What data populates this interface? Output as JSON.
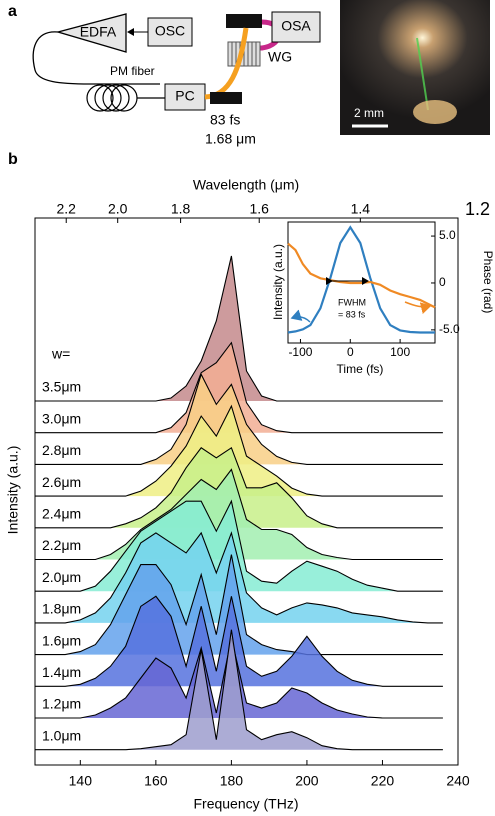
{
  "panel_a": {
    "label": "a",
    "edfa": "EDFA",
    "osc": "OSC",
    "osa": "OSA",
    "wg": "WG",
    "pm_fiber": "PM fiber",
    "pc": "PC",
    "pulse_duration": "83 fs",
    "wavelength": "1.68 μm",
    "scale_bar": "2 mm"
  },
  "panel_b_label": "b",
  "chart_data": [
    {
      "type": "waterfall",
      "x_label": "Frequency (THz)",
      "x2_label": "Wavelength (μm)",
      "y_label": "Intensity (a.u.)",
      "legend_title": "w=",
      "x": [
        128,
        132,
        136,
        140,
        144,
        148,
        152,
        156,
        160,
        164,
        168,
        172,
        176,
        180,
        184,
        188,
        192,
        196,
        200,
        204,
        208,
        212,
        216,
        220,
        224,
        228,
        232,
        236
      ],
      "xlim": [
        128,
        240
      ],
      "xticks": [
        140,
        160,
        180,
        200,
        220,
        240
      ],
      "x2ticks": [
        2.2,
        {
          "value": 2,
          "label": "2.0"
        },
        1.8,
        1.6,
        1.4,
        1.2
      ],
      "series": [
        {
          "name": "3.5μm",
          "color": "#c48a8c",
          "values": [
            0,
            0,
            0,
            0,
            0,
            0,
            0,
            0,
            0,
            0.3,
            1.5,
            4,
            8,
            14.5,
            3,
            0.5,
            0,
            0,
            0,
            0,
            0,
            0,
            0,
            0,
            0,
            0,
            0,
            0
          ]
        },
        {
          "name": "3.0μm",
          "color": "#f2ae94",
          "values": [
            0,
            0,
            0,
            0,
            0,
            0,
            0,
            0,
            0,
            0.5,
            2,
            6,
            7,
            9,
            3,
            0.8,
            0.2,
            0,
            0,
            0,
            0,
            0,
            0,
            0,
            0,
            0,
            0,
            0
          ]
        },
        {
          "name": "2.8μm",
          "color": "#f8cf86",
          "values": [
            0,
            0,
            0,
            0,
            0,
            0,
            0,
            0,
            0.5,
            1.5,
            4,
            9,
            6,
            8,
            4,
            2,
            0.8,
            0.2,
            0,
            0,
            0,
            0,
            0,
            0,
            0,
            0,
            0,
            0
          ]
        },
        {
          "name": "2.6μm",
          "color": "#eeee84",
          "values": [
            0,
            0,
            0,
            0,
            0,
            0,
            0,
            0.5,
            1.5,
            3,
            5,
            8,
            6,
            9,
            4,
            3,
            2,
            0.8,
            0.2,
            0,
            0,
            0,
            0,
            0,
            0,
            0,
            0,
            0
          ]
        },
        {
          "name": "2.4μm",
          "color": "#c8f08a",
          "values": [
            0,
            0,
            0,
            0,
            0,
            0,
            0.4,
            1,
            2,
            3.5,
            6,
            8,
            7,
            8,
            4,
            4,
            4.5,
            3,
            1.2,
            0.4,
            0,
            0,
            0,
            0,
            0,
            0,
            0,
            0
          ]
        },
        {
          "name": "2.2μm",
          "color": "#a2eeb0",
          "values": [
            0,
            0,
            0,
            0,
            0,
            0.5,
            1.5,
            3,
            4,
            5,
            6.5,
            8,
            7,
            9,
            4,
            3,
            3,
            2.5,
            1.2,
            0.5,
            0.2,
            0,
            0,
            0,
            0,
            0,
            0,
            0
          ]
        },
        {
          "name": "2.0μm",
          "color": "#86ecd4",
          "values": [
            0,
            0,
            0,
            0,
            0.5,
            2,
            4,
            6,
            7,
            8,
            9,
            9,
            6,
            9,
            2,
            1,
            0.8,
            2,
            3,
            2.5,
            2,
            1.2,
            0.6,
            0.3,
            0,
            0,
            0,
            0
          ]
        },
        {
          "name": "1.8μm",
          "color": "#74d2ee",
          "values": [
            0,
            0,
            0,
            0.3,
            1,
            2.5,
            5,
            8,
            9,
            8,
            7,
            9,
            5,
            9,
            3,
            1.5,
            0.8,
            1.5,
            2,
            1.8,
            1.5,
            1,
            0.8,
            0.6,
            0.3,
            0.1,
            0,
            0
          ]
        },
        {
          "name": "1.6μm",
          "color": "#64a2ec",
          "values": [
            0,
            0,
            0,
            0.3,
            1,
            3,
            6,
            9,
            9,
            7,
            3,
            8,
            2,
            10,
            2,
            1,
            0.5,
            0.3,
            0,
            0,
            0,
            0,
            0,
            0,
            0,
            0,
            0,
            0
          ]
        },
        {
          "name": "1.4μm",
          "color": "#5672de",
          "values": [
            0,
            0,
            0,
            0.2,
            0.8,
            2,
            4,
            8,
            9,
            7,
            2,
            8,
            1.5,
            9,
            2,
            1,
            1.5,
            3,
            5,
            3,
            1.5,
            0.6,
            0.2,
            0,
            0,
            0,
            0,
            0
          ]
        },
        {
          "name": "1.2μm",
          "color": "#6666d4",
          "values": [
            0,
            0,
            0,
            0,
            0.3,
            1,
            2,
            4,
            6,
            5,
            2,
            7,
            0.5,
            8,
            1.5,
            1,
            1.5,
            3,
            2.5,
            1.5,
            0.8,
            0.4,
            0.1,
            0,
            0,
            0,
            0,
            0
          ]
        },
        {
          "name": "1.0μm",
          "color": "#9e9ece",
          "values": [
            0,
            0,
            0,
            0,
            0,
            0,
            0,
            0.1,
            0.3,
            0.5,
            1.5,
            10,
            1,
            12,
            2,
            1,
            1.5,
            1.8,
            1.2,
            0.4,
            0.1,
            0,
            0,
            0,
            0,
            0,
            0,
            0
          ]
        }
      ]
    },
    {
      "type": "line",
      "x_label": "Time (fs)",
      "y_label": "Intensity (a.u.)",
      "y2_label": "Phase (rad)",
      "annotation": "FWHM",
      "annotation_value": "= 83 fs",
      "x": [
        -125,
        -110,
        -95,
        -80,
        -60,
        -40,
        -20,
        0,
        20,
        40,
        60,
        80,
        100,
        120,
        140,
        155,
        170
      ],
      "xlim": [
        -125,
        170
      ],
      "xticks": [
        -100,
        0,
        100
      ],
      "ylim": [
        -0.1,
        1.05
      ],
      "y2lim": [
        -6.4,
        6.5
      ],
      "y2ticks": [
        {
          "value": 5,
          "label": "5.0"
        },
        0,
        {
          "value": -5,
          "label": "-5.0"
        }
      ],
      "series": [
        {
          "color": "#2f7fc0",
          "values": [
            0,
            0.01,
            0.03,
            0.07,
            0.23,
            0.52,
            0.85,
            1,
            0.85,
            0.52,
            0.23,
            0.07,
            0.02,
            0.005,
            0,
            0,
            0
          ]
        },
        {
          "color": "#f08a24",
          "axis": "y2",
          "values": [
            4.2,
            3.5,
            2,
            1,
            0.5,
            0.3,
            0.1,
            0,
            0,
            0.1,
            -0.2,
            -0.8,
            -1.2,
            -1.5,
            -1.8,
            -2.2,
            -2.6
          ]
        }
      ]
    }
  ]
}
